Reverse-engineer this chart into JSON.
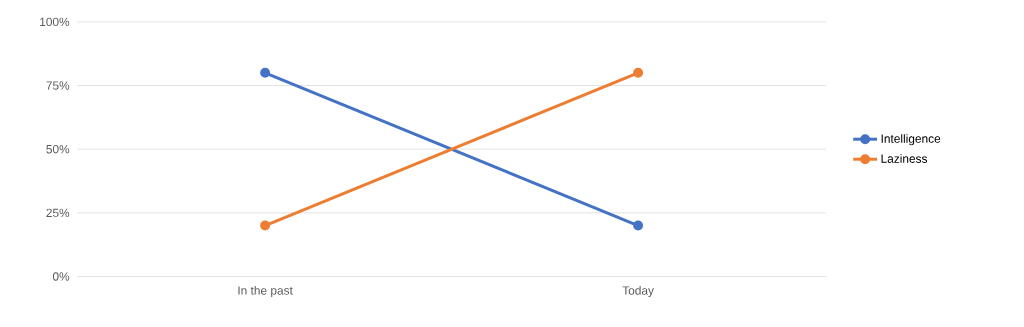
{
  "chart_data": {
    "type": "line",
    "categories": [
      "In the past",
      "Today"
    ],
    "series": [
      {
        "name": "Intelligence",
        "color": "#4472c4",
        "values": [
          80,
          20
        ]
      },
      {
        "name": "Laziness",
        "color": "#ed7d31",
        "values": [
          20,
          80
        ]
      }
    ],
    "ylim": [
      0,
      100
    ],
    "yticks": [
      {
        "value": 0,
        "label": "0%"
      },
      {
        "value": 25,
        "label": "25%"
      },
      {
        "value": 50,
        "label": "50%"
      },
      {
        "value": 75,
        "label": "75%"
      },
      {
        "value": 100,
        "label": "100%"
      }
    ],
    "grid": "y",
    "legend": "right",
    "marker": "circle",
    "line_style": "solid"
  }
}
